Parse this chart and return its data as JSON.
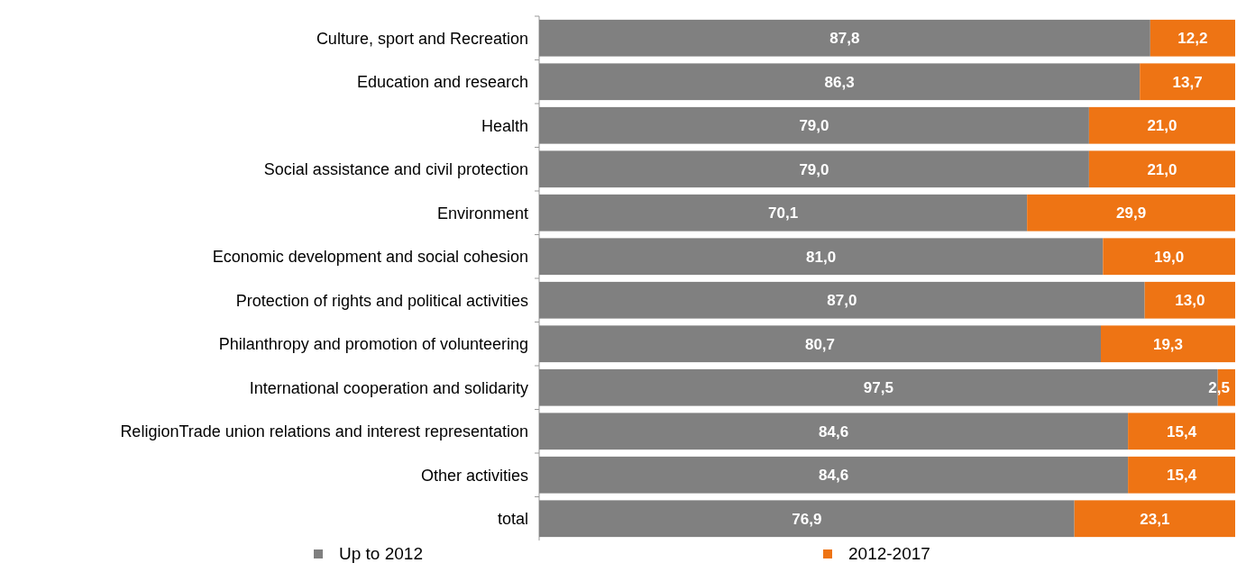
{
  "chart_data": {
    "type": "bar",
    "orientation": "horizontal",
    "stacked": true,
    "categories": [
      "Culture, sport and Recreation",
      "Education and research",
      "Health",
      "Social assistance and civil protection",
      "Environment",
      "Economic development and social cohesion",
      "Protection of rights and political activities",
      "Philanthropy and promotion of volunteering",
      "International cooperation and solidarity",
      "ReligionTrade union relations and interest representation",
      "Other activities",
      "total"
    ],
    "series": [
      {
        "name": "Up to 2012",
        "color": "#808080",
        "values": [
          87.8,
          86.3,
          79.0,
          79.0,
          70.1,
          81.0,
          87.0,
          80.7,
          97.5,
          84.6,
          84.6,
          76.9
        ],
        "value_labels": [
          "87,8",
          "86,3",
          "79,0",
          "79,0",
          "70,1",
          "81,0",
          "87,0",
          "80,7",
          "97,5",
          "84,6",
          "84,6",
          "76,9"
        ]
      },
      {
        "name": "2012-2017",
        "color": "#ee7414",
        "values": [
          12.2,
          13.7,
          21.0,
          21.0,
          29.9,
          19.0,
          13.0,
          19.3,
          2.5,
          15.4,
          15.4,
          23.1
        ],
        "value_labels": [
          "12,2",
          "13,7",
          "21,0",
          "21,0",
          "29,9",
          "19,0",
          "13,0",
          "19,3",
          "2,5",
          "15,4",
          "15,4",
          "23,1"
        ]
      }
    ],
    "xlim": [
      0,
      100
    ],
    "tick_labels": "y",
    "legend": "bottom"
  }
}
